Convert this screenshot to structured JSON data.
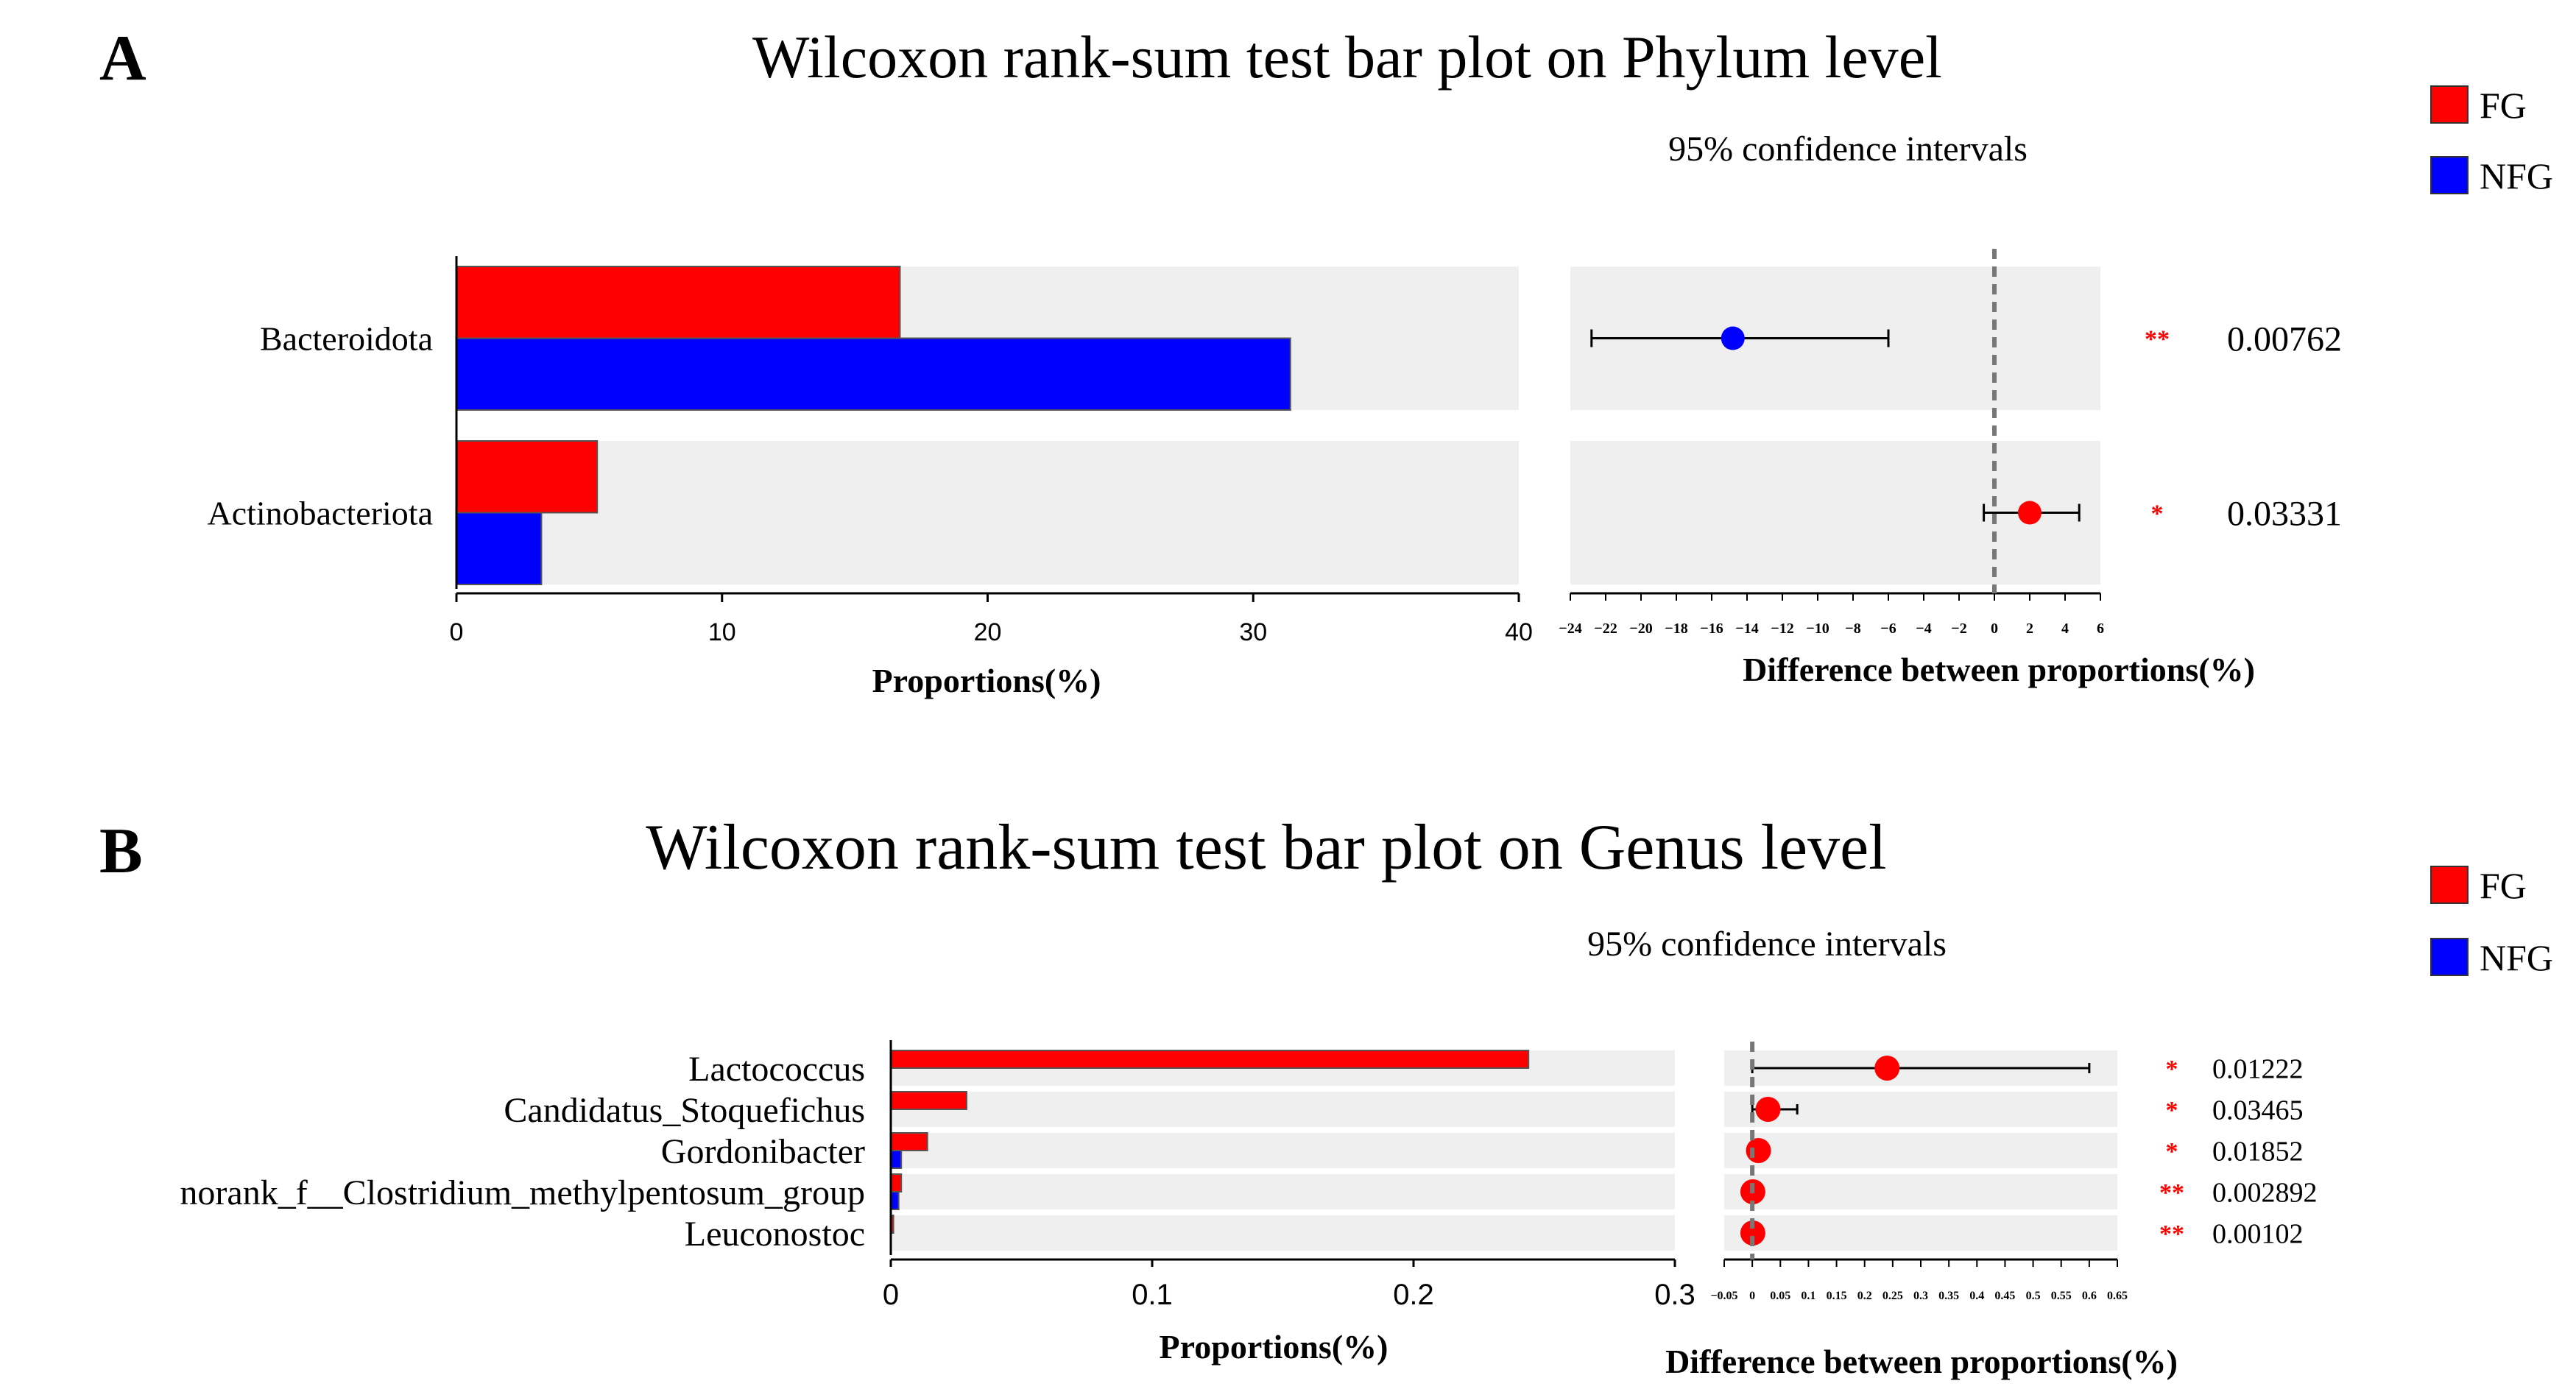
{
  "legend_labels": [
    "FG",
    "NFG"
  ],
  "colors": {
    "FG": "#ff0000",
    "NFG": "#0000ff",
    "band": "#efefef",
    "star": "#ff0000"
  },
  "chart_data": [
    {
      "type": "bar",
      "panel_label": "A",
      "title": "Wilcoxon rank-sum test bar plot on Phylum level",
      "ci_label": "95% confidence intervals",
      "xlabel": "Proportions(%)",
      "diff_xlabel": "Difference between proportions(%)",
      "categories": [
        "Bacteroidota",
        "Actinobacteriota"
      ],
      "series": [
        {
          "name": "FG",
          "values": [
            16.7,
            5.3
          ]
        },
        {
          "name": "NFG",
          "values": [
            31.4,
            3.2
          ]
        }
      ],
      "xlim": [
        0,
        40
      ],
      "xticks": [
        "0",
        "10",
        "20",
        "30",
        "40"
      ],
      "diff": {
        "estimate": [
          -14.8,
          2.0
        ],
        "ci_low": [
          -22.8,
          -0.6
        ],
        "ci_high": [
          -6.0,
          4.8
        ],
        "xlim": [
          -24,
          6
        ],
        "xticks": [
          "-24",
          "-22",
          "-20",
          "-18",
          "-16",
          "-14",
          "-12",
          "-10",
          "-8",
          "-6",
          "-4",
          "-2",
          "0",
          "2",
          "4",
          "6"
        ]
      },
      "significance": [
        "**",
        "*"
      ],
      "p_values": [
        "0.00762",
        "0.03331"
      ]
    },
    {
      "type": "bar",
      "panel_label": "B",
      "title": "Wilcoxon rank-sum test bar plot on Genus level",
      "ci_label": "95% confidence intervals",
      "xlabel": "Proportions(%)",
      "diff_xlabel": "Difference between proportions(%)",
      "categories": [
        "Lactococcus",
        "Candidatus_Stoquefichus",
        "Gordonibacter",
        "norank_f__Clostridium_methylpentosum_group",
        "Leuconostoc"
      ],
      "series": [
        {
          "name": "FG",
          "values": [
            0.244,
            0.029,
            0.014,
            0.004,
            0.001
          ]
        },
        {
          "name": "NFG",
          "values": [
            0.0,
            0.0,
            0.004,
            0.003,
            0.0
          ]
        }
      ],
      "xlim": [
        0,
        0.3
      ],
      "xticks": [
        "0",
        "0.1",
        "0.2",
        "0.3"
      ],
      "diff": {
        "estimate": [
          0.24,
          0.028,
          0.011,
          0.001,
          0.001
        ],
        "ci_low": [
          0.0,
          0.0,
          0.004,
          0.0,
          0.0
        ],
        "ci_high": [
          0.6,
          0.08,
          0.018,
          0.004,
          0.002
        ],
        "xlim": [
          -0.05,
          0.65
        ],
        "xticks": [
          "-0.05",
          "0",
          "0.05",
          "0.1",
          "0.15",
          "0.2",
          "0.25",
          "0.3",
          "0.35",
          "0.4",
          "0.45",
          "0.5",
          "0.55",
          "0.6",
          "0.65"
        ]
      },
      "significance": [
        "*",
        "*",
        "*",
        "**",
        "**"
      ],
      "p_values": [
        "0.01222",
        "0.03465",
        "0.01852",
        "0.002892",
        "0.00102"
      ]
    }
  ]
}
